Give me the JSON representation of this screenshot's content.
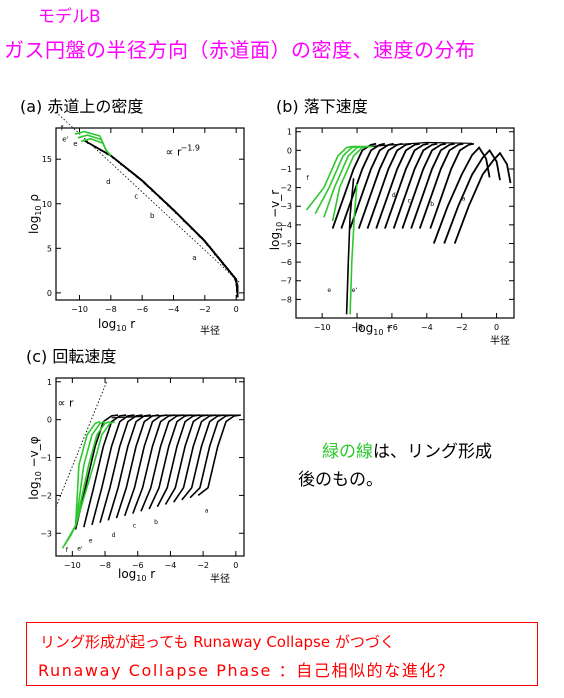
{
  "header": {
    "model": "モデルB",
    "title": "ガス円盤の半径方向（赤道面）の密度、速度の分布"
  },
  "colors": {
    "header": "#ff00ff",
    "green_curves": "#2ec82e",
    "box": "#ff0000"
  },
  "panels": [
    {
      "label": "(a) 赤道上の密度"
    },
    {
      "label": "(b) 落下速度"
    },
    {
      "label": "(c) 回転速度"
    }
  ],
  "note": {
    "green": "緑の線",
    "line1_rest": "は、リング形成",
    "line2": "後のもの。"
  },
  "box": {
    "line1": "リング形成が起っても Runaway Collapse がつづく",
    "line2": "Runaway Collapse Phase ：自己相似的な進化？"
  },
  "chart_data": [
    {
      "type": "line",
      "panel": "a",
      "xlabel": "log10 r",
      "ylabel": "log10 ρ",
      "xlim": [
        -11.5,
        0.5
      ],
      "ylim": [
        -0.8,
        18.5
      ],
      "xticks": [
        -10,
        -8,
        -6,
        -4,
        -2,
        0
      ],
      "yticks": [
        0,
        5,
        10,
        15
      ],
      "extra_label": "半径",
      "annotation": "∝ r^-1.9",
      "curve_labels": [
        "a",
        "b",
        "c",
        "d",
        "e",
        "e'",
        "f"
      ],
      "reference_line": {
        "x": [
          -11.5,
          0.2
        ],
        "y": [
          20.3,
          1.2
        ]
      },
      "envelope": {
        "x": [
          -9.8,
          -8,
          -6,
          -4,
          -2,
          0,
          0.2
        ],
        "y": [
          17.2,
          15.4,
          12.6,
          9.3,
          5.8,
          1.5,
          0
        ]
      },
      "green_curve_inner_x": [
        -10.3,
        -10.1,
        -9.9
      ],
      "black_curve_inner_x": [
        -9.7,
        -9.4,
        -9.0,
        -8.6,
        -8.2,
        -7.8,
        -7.3,
        -6.8,
        -6.3,
        -5.8,
        -5.3,
        -4.8,
        -4.3,
        -3.8,
        -3.3,
        -2.8,
        -2.3,
        -1.8,
        -1.3,
        -0.8
      ]
    },
    {
      "type": "line",
      "panel": "b",
      "xlabel": "log10 r",
      "ylabel": "log10 −v_r",
      "xlim": [
        -11.5,
        1
      ],
      "ylim": [
        -9,
        1.2
      ],
      "xticks": [
        -10,
        -8,
        -6,
        -4,
        -2,
        0
      ],
      "yticks": [
        1,
        0,
        -1,
        -2,
        -3,
        -4,
        -5,
        -6,
        -7,
        -8
      ],
      "extra_label": "半径",
      "curve_labels": [
        "a",
        "b",
        "c",
        "d",
        "e",
        "e'",
        "f"
      ],
      "green_curve_peaks_x": [
        -8.3,
        -8.0,
        -7.7,
        -7.4
      ],
      "black_curve_peaks_x": [
        -7.2,
        -6.7,
        -6.2,
        -5.7,
        -5.2,
        -4.7,
        -4.2,
        -3.7,
        -3.2,
        -2.7,
        -2.2,
        -1.6,
        -1.0,
        -0.4,
        0.2
      ]
    },
    {
      "type": "line",
      "panel": "c",
      "xlabel": "log10 r",
      "ylabel": "log10 −v_φ",
      "xlim": [
        -11,
        0.5
      ],
      "ylim": [
        -3.6,
        1.1
      ],
      "xticks": [
        -10,
        -8,
        -6,
        -4,
        -2,
        0
      ],
      "yticks": [
        1,
        0,
        -1,
        -2,
        -3
      ],
      "extra_label": "半径",
      "annotation": "∝ r",
      "curve_labels": [
        "a",
        "b",
        "c",
        "d",
        "e",
        "e'",
        "f"
      ],
      "reference_line": {
        "x": [
          -11,
          -7.9
        ],
        "y": [
          -2.3,
          1.0
        ]
      },
      "green_curve_tops_x": [
        -8.6,
        -8.3,
        -8.0,
        -7.7
      ],
      "black_curve_tops_x": [
        -7.6,
        -7.1,
        -6.6,
        -6.1,
        -5.6,
        -5.1,
        -4.6,
        -4.1,
        -3.6,
        -3.1,
        -2.6,
        -2.1,
        -1.6,
        -1.1,
        -0.6,
        -0.1
      ]
    }
  ]
}
